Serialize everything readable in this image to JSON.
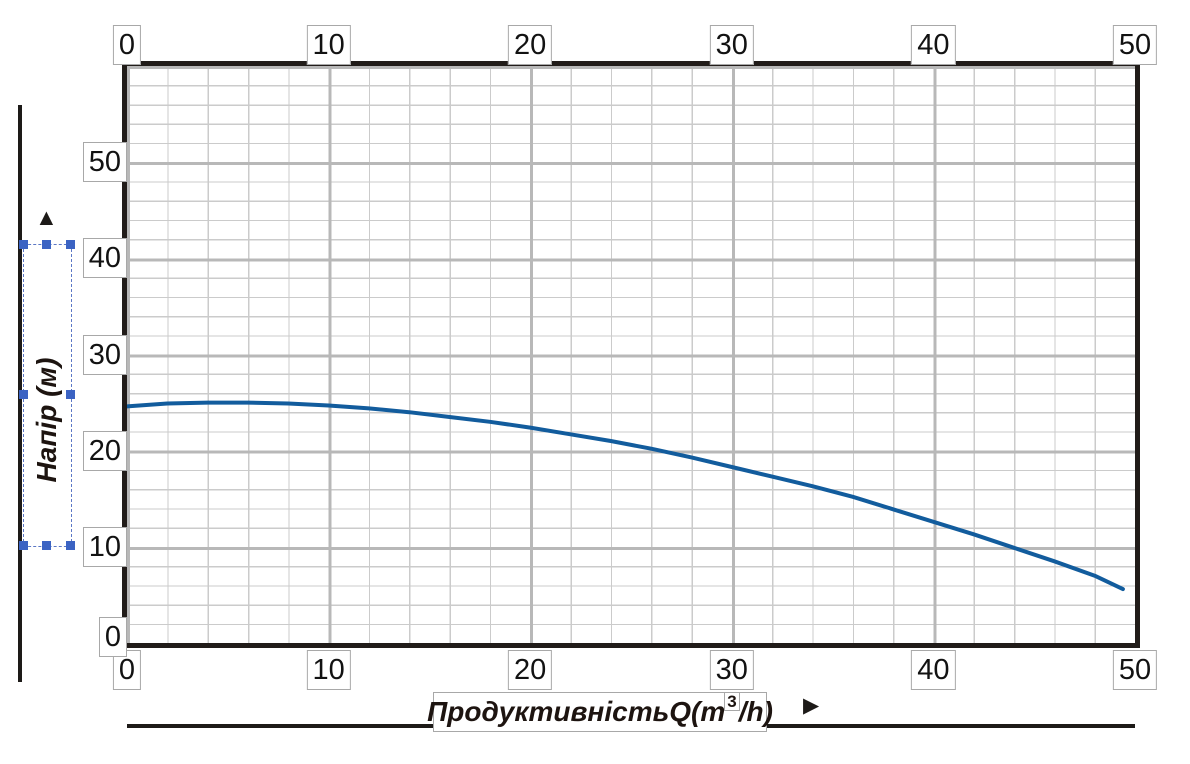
{
  "chart_data": {
    "type": "line",
    "title": "",
    "xlabel": "Продуктивність  Q(m³/h)",
    "ylabel": "Напір (м)",
    "x_axis": {
      "min": 0,
      "max": 50,
      "major_step": 10,
      "minor_step": 2,
      "tick_labels": [
        "0",
        "10",
        "20",
        "30",
        "40",
        "50"
      ],
      "ticks_shown": "top and bottom"
    },
    "y_axis": {
      "min": 0,
      "max": 60,
      "major_step": 10,
      "minor_step": 2,
      "tick_labels": [
        "0",
        "10",
        "20",
        "30",
        "40",
        "50"
      ],
      "ticks_shown": "left"
    },
    "grid": {
      "major": true,
      "minor": true,
      "major_color": "#b8b8b8",
      "minor_color": "#cbcbcb"
    },
    "series": [
      {
        "name": "pump-head-capacity-curve",
        "color": "#125c9d",
        "points": [
          [
            0,
            24.6
          ],
          [
            2,
            24.9
          ],
          [
            4,
            25.0
          ],
          [
            6,
            25.0
          ],
          [
            8,
            24.9
          ],
          [
            10,
            24.7
          ],
          [
            12,
            24.4
          ],
          [
            14,
            24.0
          ],
          [
            16,
            23.5
          ],
          [
            18,
            23.0
          ],
          [
            20,
            22.4
          ],
          [
            22,
            21.7
          ],
          [
            24,
            21.0
          ],
          [
            26,
            20.2
          ],
          [
            28,
            19.3
          ],
          [
            30,
            18.3
          ],
          [
            32,
            17.3
          ],
          [
            34,
            16.3
          ],
          [
            36,
            15.2
          ],
          [
            38,
            13.9
          ],
          [
            40,
            12.6
          ],
          [
            42,
            11.3
          ],
          [
            44,
            9.9
          ],
          [
            46,
            8.5
          ],
          [
            48,
            7.0
          ],
          [
            49.4,
            5.6
          ]
        ]
      }
    ]
  },
  "labels": {
    "ylabel_text": "Напір (м)",
    "xlabel_main": "Продуктивність",
    "xlabel_q": "Q(m",
    "xlabel_sup": "3",
    "xlabel_tail": "/h)"
  },
  "icons": {
    "up_arrow": "▲",
    "right_arrow": "▶"
  },
  "selection": {
    "state": "selected",
    "handle_color": "#3b63c3",
    "border_color": "#5b77c5"
  },
  "colors": {
    "frame": "#211c19",
    "curve": "#125c9d",
    "tick_box_border": "#a8a8a8",
    "text": "#1d1410"
  }
}
